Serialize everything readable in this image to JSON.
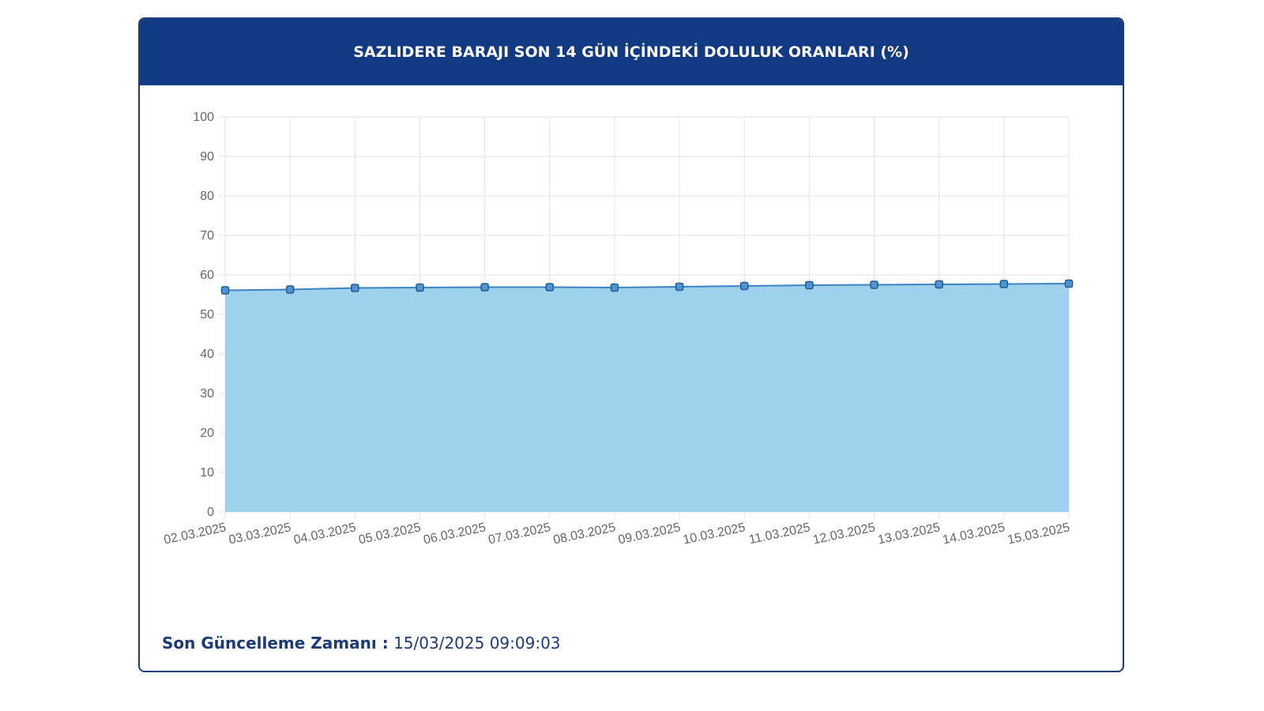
{
  "header": {
    "title": "SAZLIDERE BARAJI SON 14 GÜN İÇİNDEKİ DOLULUK ORANLARI (%)"
  },
  "footer": {
    "label": "Son Güncelleme Zamanı :",
    "value": "15/03/2025 09:09:03"
  },
  "colors": {
    "header_bg": "#123a82",
    "line": "#3a83c4",
    "fill": "#9fd0ec",
    "point_fill": "#4f96d1",
    "point_stroke": "#1e5b95",
    "grid": "#e3e3e3"
  },
  "chart_data": {
    "type": "area",
    "title": "SAZLIDERE BARAJI SON 14 GÜN İÇİNDEKİ DOLULUK ORANLARI (%)",
    "xlabel": "",
    "ylabel": "",
    "ylim": [
      0,
      100
    ],
    "yticks": [
      0,
      10,
      20,
      30,
      40,
      50,
      60,
      70,
      80,
      90,
      100
    ],
    "grid": true,
    "legend": "none",
    "categories": [
      "02.03.2025",
      "03.03.2025",
      "04.03.2025",
      "05.03.2025",
      "06.03.2025",
      "07.03.2025",
      "08.03.2025",
      "09.03.2025",
      "10.03.2025",
      "11.03.2025",
      "12.03.2025",
      "13.03.2025",
      "14.03.2025",
      "15.03.2025"
    ],
    "values": [
      56.1,
      56.3,
      56.7,
      56.8,
      56.9,
      56.9,
      56.8,
      57.0,
      57.2,
      57.4,
      57.5,
      57.6,
      57.7,
      57.8
    ]
  }
}
